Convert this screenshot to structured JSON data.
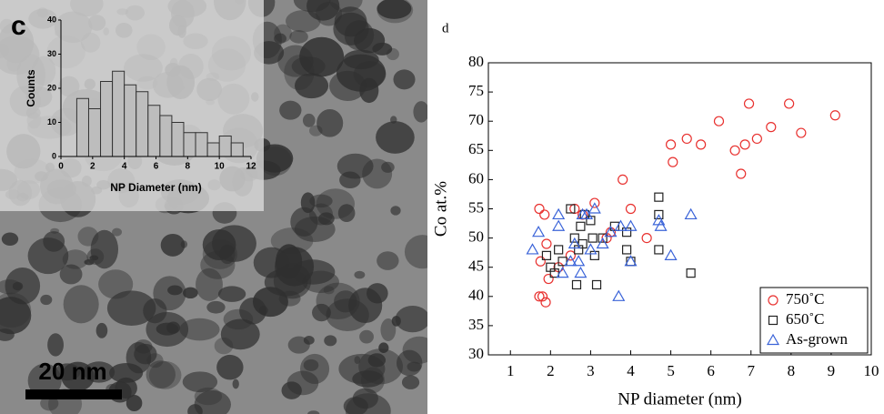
{
  "image": {
    "scale_bar": "20 nm"
  },
  "chart_data": [
    {
      "type": "histogram",
      "panel_label": "c",
      "xlabel": "NP Diameter (nm)",
      "ylabel": "Counts",
      "bins": [
        1,
        1.75,
        2.5,
        3.25,
        4,
        4.75,
        5.5,
        6.25,
        7,
        7.75,
        8.5,
        9.25,
        10,
        10.75,
        11.5
      ],
      "values": [
        17,
        14,
        22,
        25,
        21,
        19,
        15,
        12,
        10,
        7,
        7,
        4,
        6,
        4
      ],
      "color": "#bdbdbd",
      "xlim": [
        0,
        12
      ],
      "xticks": [
        0,
        2,
        4,
        6,
        8,
        10,
        12
      ],
      "ylim": [
        0,
        40
      ],
      "yticks": [
        0,
        10,
        20,
        30,
        40
      ]
    },
    {
      "type": "scatter",
      "panel_label": "d",
      "xlabel": "NP diameter (nm)",
      "ylabel": "Co at.%",
      "xlim": [
        0.45,
        10
      ],
      "xticks": [
        1,
        2,
        3,
        4,
        5,
        6,
        7,
        8,
        9,
        10
      ],
      "ylim": [
        30,
        80
      ],
      "yticks": [
        30,
        35,
        40,
        45,
        50,
        55,
        60,
        65,
        70,
        75,
        80
      ],
      "legend": "lower right",
      "series": [
        {
          "name": "750˚C",
          "marker": "circle",
          "color": "#e8312f",
          "x": [
            1.72,
            1.75,
            1.8,
            1.85,
            1.88,
            1.9,
            1.95,
            2.2,
            2.5,
            2.6,
            2.8,
            3.1,
            3.4,
            3.5,
            3.8,
            4.0,
            4.4,
            5.0,
            5.05,
            5.4,
            5.75,
            6.2,
            6.6,
            6.75,
            6.85,
            6.95,
            7.15,
            7.5,
            7.95,
            8.25,
            9.1,
            1.72
          ],
          "values": [
            55,
            46,
            40,
            54,
            39,
            49,
            43,
            45,
            47,
            55,
            54,
            56,
            50,
            51,
            60,
            55,
            50,
            66,
            63,
            67,
            66,
            70,
            65,
            61,
            66,
            73,
            67,
            69,
            73,
            68,
            71,
            40
          ]
        },
        {
          "name": "650˚C",
          "marker": "square",
          "color": "#222222",
          "x": [
            1.9,
            2.0,
            2.1,
            2.2,
            2.3,
            2.5,
            2.6,
            2.65,
            2.7,
            2.75,
            2.8,
            2.85,
            3.0,
            3.05,
            3.1,
            3.15,
            3.3,
            3.6,
            3.9,
            3.9,
            4.0,
            4.7,
            4.7,
            4.7,
            5.5
          ],
          "values": [
            47,
            45,
            44,
            48,
            46,
            55,
            50,
            42,
            48,
            52,
            49,
            54,
            53,
            50,
            47,
            42,
            50,
            52,
            51,
            48,
            46,
            57,
            54,
            48,
            44
          ]
        },
        {
          "name": "As-grown",
          "marker": "triangle",
          "color": "#3a63d8",
          "x": [
            1.55,
            1.7,
            2.2,
            2.2,
            2.3,
            2.5,
            2.6,
            2.7,
            2.75,
            2.8,
            2.9,
            3.0,
            3.1,
            3.3,
            3.5,
            3.7,
            3.75,
            4.0,
            4.0,
            4.7,
            4.75,
            5.0,
            5.5
          ],
          "values": [
            48,
            51,
            54,
            52,
            44,
            46,
            49,
            46,
            44,
            54,
            54,
            48,
            55,
            49,
            51,
            40,
            52,
            52,
            46,
            53,
            52,
            47,
            54
          ]
        }
      ]
    }
  ]
}
